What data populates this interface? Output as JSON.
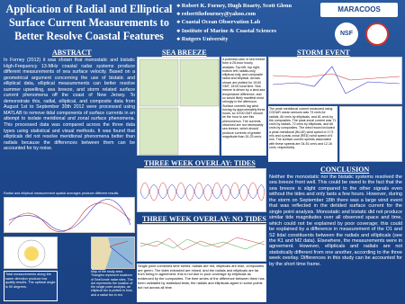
{
  "header": {
    "title": "Application of Radial and Elliptical Surface Current Measurements to Better Resolve Coastal Features",
    "authors": [
      "Robert K. Forney, Hugh Roarty, Scott Glenn",
      "robertthefourney@yahoo.com",
      "Coastal Ocean Observation Lab",
      "Institute of Marine & Coastal Sciences",
      "Rutgers University"
    ]
  },
  "logos": {
    "maracoos": "MARACOOS",
    "nsf": "NSF"
  },
  "abstract": {
    "heading": "ABSTRACT",
    "text": "In Forney (2012) it was shown that monostatic and bistatic High-Frequency 13-MHz coastal radar systems produce different measurements of sea surface velocity. Based on a geometrical argument concerning the use of bistatic and elliptical data, elliptical measurements can better resolve summer upwelling, sea breeze, and storm related surface current phenomena off the coast of New Jersey. To demonstrate this, radial, elliptical, and composite data from August 1st to September 30th 2012 were processed using MATLAB to remove tidal components of surface currents in an attempt to isolate meridional and zonal surface phenomena. This processed data was compared across the three data types using statistical and visual methods. It was found that ellipticals did not resolve meridional phenomena better than radials because the differences between them can be accounted for by noise."
  },
  "figures_left": {
    "caption_top": "Radial and elliptical measurement spatial averages produce different results",
    "caption_angle": "Total measurements along the same direction produce low quality results. The optimal angle is 90 degrees.",
    "caption_map": "Map of the study area. Triangles represent locations of SeaSonde radar sites. The dot represents the location of the single point analysis; an elliptical fan is plotted in blue, and a radial fan in red."
  },
  "sea_breeze": {
    "heading": "SEA BREEZE",
    "caption": "A potential case of sea breeze from a 25-hour hourly analysis. Top left, top right, bottom left: radials-only, elliptical-only, and composite radial and elliptical. Arrows shown are plotted for 19:00 GMT, 15:00 local time. Sea breeze is driven by a land-sea temperature difference, and so would likely manifest most strongly in the afternoon. Surface currents lag wind forcing by approximately three hours, so 19:00 GMT should be the hour to see this phenomenon. The currents observed are not necessarily sea breeze, which should produce currents of greater magnitude than 20-23 cm/s."
  },
  "storm_event": {
    "heading": "STORM EVENT",
    "caption": "The peak meridional current measured using CODAR ocean sensors was 73 cm/s for radials, 60 cm/s by ellipticals, and 61 cm/s by the composites. The peak zonal current was 71 cm/s by radials, 72 cm/s by ellipticals, and 66 cm/s by composites. The wind record included a peak meridional (BLUE) wind speed of 17.5 m/s and a peak zonal (RED) wind speed of 6 m/s. The surface current speeds associated with these speeds are 34-51 cm/s and 12-16 cm/s, respectively."
  },
  "tides": {
    "heading": "THREE WEEK OVERLAY: TIDES"
  },
  "no_tides": {
    "heading": "THREE WEEK OVERLAY: NO TIDES",
    "caption": "Single point combined time series: radials are red, ellipticals are blue, composites are green. The tides extracted are mixed, and the radials and ellipticals are far from being in agreement; this is not due to poor coverage by ellipticals as evidenced by the composites. The time series of the difference between them has been validated by statistical tests; the radials and ellipticals agree in some points but not across all time."
  },
  "conclusion": {
    "heading": "CONCLUSION",
    "text": "Neither the monostatic nor the bistatic systems resolved the sea breeze front well. This could be owed to the fact that the sea breeze is slight compared to the other signals even without the tides and only lasts a few hours. However, during the storm on September 18th there was a large wind event that was reflected in the detided surface current for the single point analysis. Monostatic and bistatic did not produce similar tide magnitudes over all observed space and time, which could not be explained by poor coverage; this could be explained by a difference in measurement of the O1 and S2 tidal constituents between the radials and ellipticals (see the K1 and M2 data). Elsewhere, the measurements were in agreement. However, ellipticals and radials are not statistically different from one another, according to the three week overlay. Differences in this study can be accounted for by the short time frame."
  }
}
